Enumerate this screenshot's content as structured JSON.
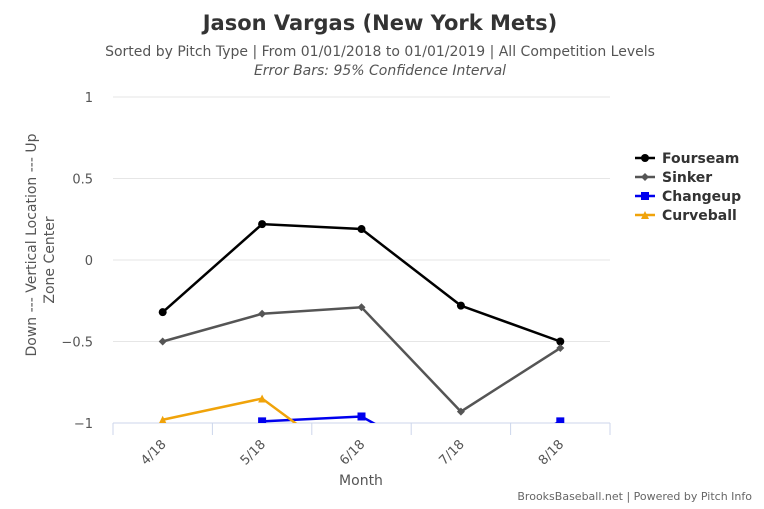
{
  "chart_data": {
    "type": "line",
    "title": "Jason Vargas (New York Mets)",
    "subtitle": "Sorted by Pitch Type | From 01/01/2018 to 01/01/2019 | All Competition Levels",
    "subtitle2": "Error Bars: 95% Confidence Interval",
    "xlabel": "Month",
    "ylabel": "Down --- Vertical Location --- Up",
    "ylabel2": "Zone Center",
    "categories": [
      "4/18",
      "5/18",
      "6/18",
      "7/18",
      "8/18"
    ],
    "ylim": [
      -1,
      1
    ],
    "yticks": [
      1,
      0.5,
      0,
      -0.5,
      -1
    ],
    "ytick_labels": [
      "1",
      "0.5",
      "0",
      "−0.5",
      "−1"
    ],
    "grid": true,
    "legend": "right",
    "series": [
      {
        "name": "Fourseam",
        "color": "#000000",
        "marker": "circle",
        "values": [
          -0.32,
          0.22,
          0.19,
          -0.28,
          -0.5
        ]
      },
      {
        "name": "Sinker",
        "color": "#555555",
        "marker": "diamond",
        "values": [
          -0.5,
          -0.33,
          -0.29,
          -0.93,
          -0.54
        ]
      },
      {
        "name": "Changeup",
        "color": "#0000ee",
        "marker": "square",
        "values": [
          null,
          -0.99,
          -0.96,
          -1.3,
          -0.99
        ]
      },
      {
        "name": "Curveball",
        "color": "#f0a30a",
        "marker": "triangle",
        "values": [
          -0.98,
          -0.85,
          -1.3,
          null,
          null
        ]
      }
    ],
    "credits": "BrooksBaseball.net | Powered by Pitch Info"
  }
}
